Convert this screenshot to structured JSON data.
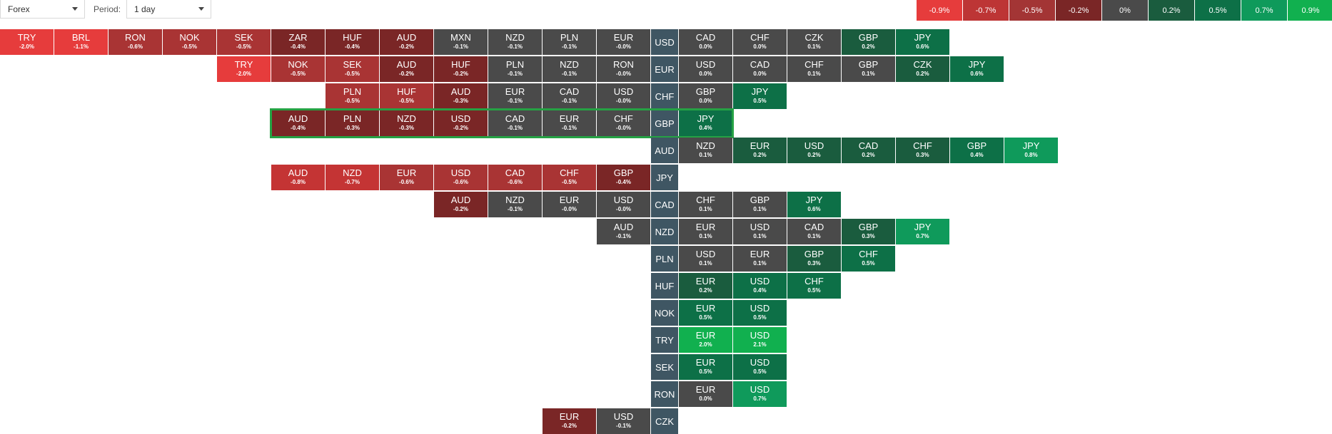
{
  "filters": {
    "market": {
      "value": "Forex"
    },
    "period_label": "Period:",
    "period": {
      "value": "1 day"
    }
  },
  "legend": [
    {
      "label": "-0.9%",
      "color": "#e63c3c"
    },
    {
      "label": "-0.7%",
      "color": "#bd3535"
    },
    {
      "label": "-0.5%",
      "color": "#a33535"
    },
    {
      "label": "-0.2%",
      "color": "#7a2626"
    },
    {
      "label": "0%",
      "color": "#4a4a4a"
    },
    {
      "label": "0.2%",
      "color": "#1a5c3e"
    },
    {
      "label": "0.5%",
      "color": "#0d7047"
    },
    {
      "label": "0.7%",
      "color": "#0f9a5b"
    },
    {
      "label": "0.9%",
      "color": "#11b04f"
    }
  ],
  "highlighted_row": "GBP",
  "rows": [
    {
      "base": "USD",
      "left": [
        [
          "TRY",
          "-2.0%"
        ],
        [
          "BRL",
          "-1.1%"
        ],
        [
          "RON",
          "-0.6%"
        ],
        [
          "NOK",
          "-0.5%"
        ],
        [
          "SEK",
          "-0.5%"
        ],
        [
          "ZAR",
          "-0.4%"
        ],
        [
          "HUF",
          "-0.4%"
        ],
        [
          "AUD",
          "-0.2%"
        ],
        [
          "MXN",
          "-0.1%"
        ],
        [
          "NZD",
          "-0.1%"
        ],
        [
          "PLN",
          "-0.1%"
        ],
        [
          "EUR",
          "-0.0%"
        ]
      ],
      "right": [
        [
          "CAD",
          "0.0%"
        ],
        [
          "CHF",
          "0.0%"
        ],
        [
          "CZK",
          "0.1%"
        ],
        [
          "GBP",
          "0.2%"
        ],
        [
          "JPY",
          "0.6%"
        ]
      ]
    },
    {
      "base": "EUR",
      "left": [
        [
          "TRY",
          "-2.0%"
        ],
        [
          "NOK",
          "-0.5%"
        ],
        [
          "SEK",
          "-0.5%"
        ],
        [
          "AUD",
          "-0.2%"
        ],
        [
          "HUF",
          "-0.2%"
        ],
        [
          "PLN",
          "-0.1%"
        ],
        [
          "NZD",
          "-0.1%"
        ],
        [
          "RON",
          "-0.0%"
        ]
      ],
      "right": [
        [
          "USD",
          "0.0%"
        ],
        [
          "CAD",
          "0.0%"
        ],
        [
          "CHF",
          "0.1%"
        ],
        [
          "GBP",
          "0.1%"
        ],
        [
          "CZK",
          "0.2%"
        ],
        [
          "JPY",
          "0.6%"
        ]
      ]
    },
    {
      "base": "CHF",
      "left": [
        [
          "PLN",
          "-0.5%"
        ],
        [
          "HUF",
          "-0.5%"
        ],
        [
          "AUD",
          "-0.3%"
        ],
        [
          "EUR",
          "-0.1%"
        ],
        [
          "CAD",
          "-0.1%"
        ],
        [
          "USD",
          "-0.0%"
        ]
      ],
      "right": [
        [
          "GBP",
          "0.0%"
        ],
        [
          "JPY",
          "0.5%"
        ]
      ]
    },
    {
      "base": "GBP",
      "left": [
        [
          "AUD",
          "-0.4%"
        ],
        [
          "PLN",
          "-0.3%"
        ],
        [
          "NZD",
          "-0.3%"
        ],
        [
          "USD",
          "-0.2%"
        ],
        [
          "CAD",
          "-0.1%"
        ],
        [
          "EUR",
          "-0.1%"
        ],
        [
          "CHF",
          "-0.0%"
        ]
      ],
      "right": [
        [
          "JPY",
          "0.4%"
        ]
      ]
    },
    {
      "base": "AUD",
      "left": [],
      "right": [
        [
          "NZD",
          "0.1%"
        ],
        [
          "EUR",
          "0.2%"
        ],
        [
          "USD",
          "0.2%"
        ],
        [
          "CAD",
          "0.2%"
        ],
        [
          "CHF",
          "0.3%"
        ],
        [
          "GBP",
          "0.4%"
        ],
        [
          "JPY",
          "0.8%"
        ]
      ]
    },
    {
      "base": "JPY",
      "left": [
        [
          "AUD",
          "-0.8%"
        ],
        [
          "NZD",
          "-0.7%"
        ],
        [
          "EUR",
          "-0.6%"
        ],
        [
          "USD",
          "-0.6%"
        ],
        [
          "CAD",
          "-0.6%"
        ],
        [
          "CHF",
          "-0.5%"
        ],
        [
          "GBP",
          "-0.4%"
        ]
      ],
      "right": []
    },
    {
      "base": "CAD",
      "left": [
        [
          "AUD",
          "-0.2%"
        ],
        [
          "NZD",
          "-0.1%"
        ],
        [
          "EUR",
          "-0.0%"
        ],
        [
          "USD",
          "-0.0%"
        ]
      ],
      "right": [
        [
          "CHF",
          "0.1%"
        ],
        [
          "GBP",
          "0.1%"
        ],
        [
          "JPY",
          "0.6%"
        ]
      ]
    },
    {
      "base": "NZD",
      "left": [
        [
          "AUD",
          "-0.1%"
        ]
      ],
      "right": [
        [
          "EUR",
          "0.1%"
        ],
        [
          "USD",
          "0.1%"
        ],
        [
          "CAD",
          "0.1%"
        ],
        [
          "GBP",
          "0.3%"
        ],
        [
          "JPY",
          "0.7%"
        ]
      ]
    },
    {
      "base": "PLN",
      "left": [],
      "right": [
        [
          "USD",
          "0.1%"
        ],
        [
          "EUR",
          "0.1%"
        ],
        [
          "GBP",
          "0.3%"
        ],
        [
          "CHF",
          "0.5%"
        ]
      ]
    },
    {
      "base": "HUF",
      "left": [],
      "right": [
        [
          "EUR",
          "0.2%"
        ],
        [
          "USD",
          "0.4%"
        ],
        [
          "CHF",
          "0.5%"
        ]
      ]
    },
    {
      "base": "NOK",
      "left": [],
      "right": [
        [
          "EUR",
          "0.5%"
        ],
        [
          "USD",
          "0.5%"
        ]
      ]
    },
    {
      "base": "TRY",
      "left": [],
      "right": [
        [
          "EUR",
          "2.0%"
        ],
        [
          "USD",
          "2.1%"
        ]
      ]
    },
    {
      "base": "SEK",
      "left": [],
      "right": [
        [
          "EUR",
          "0.5%"
        ],
        [
          "USD",
          "0.5%"
        ]
      ]
    },
    {
      "base": "RON",
      "left": [],
      "right": [
        [
          "EUR",
          "0.0%"
        ],
        [
          "USD",
          "0.7%"
        ]
      ]
    },
    {
      "base": "CZK",
      "left": [
        [
          "EUR",
          "-0.2%"
        ],
        [
          "USD",
          "-0.1%"
        ]
      ],
      "right": []
    }
  ]
}
